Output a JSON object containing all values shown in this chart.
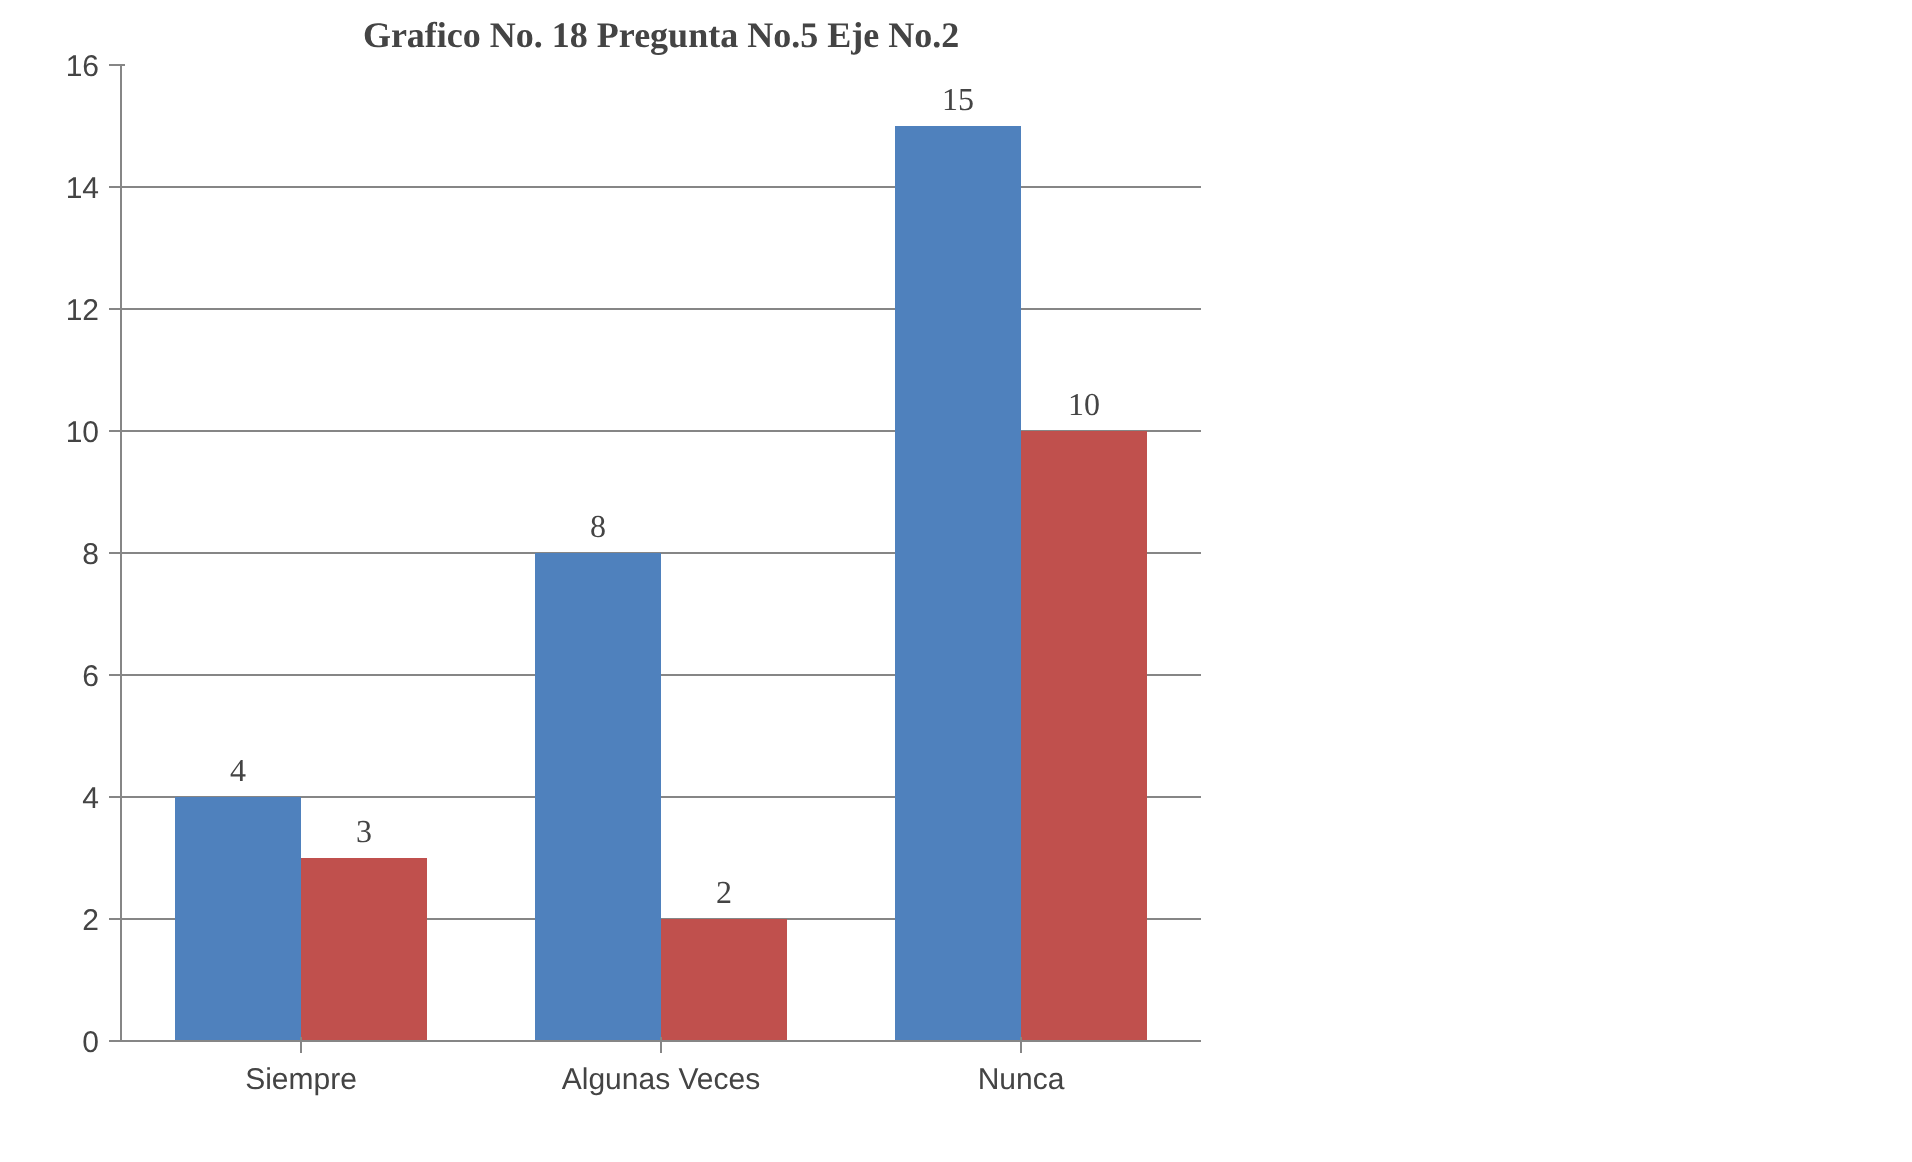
{
  "chart_data": {
    "type": "bar",
    "title": "Grafico No. 18 Pregunta No.5 Eje No.2",
    "categories": [
      "Siempre",
      "Algunas Veces",
      "Nunca"
    ],
    "series": [
      {
        "color": "#4f81bd",
        "values": [
          4,
          8,
          15
        ]
      },
      {
        "color": "#c0504d",
        "values": [
          3,
          2,
          10
        ]
      }
    ],
    "ylim": [
      0,
      16
    ],
    "yticks": [
      0,
      2,
      4,
      6,
      8,
      10,
      12,
      14,
      16
    ],
    "grid": "y",
    "data_labels": true
  }
}
